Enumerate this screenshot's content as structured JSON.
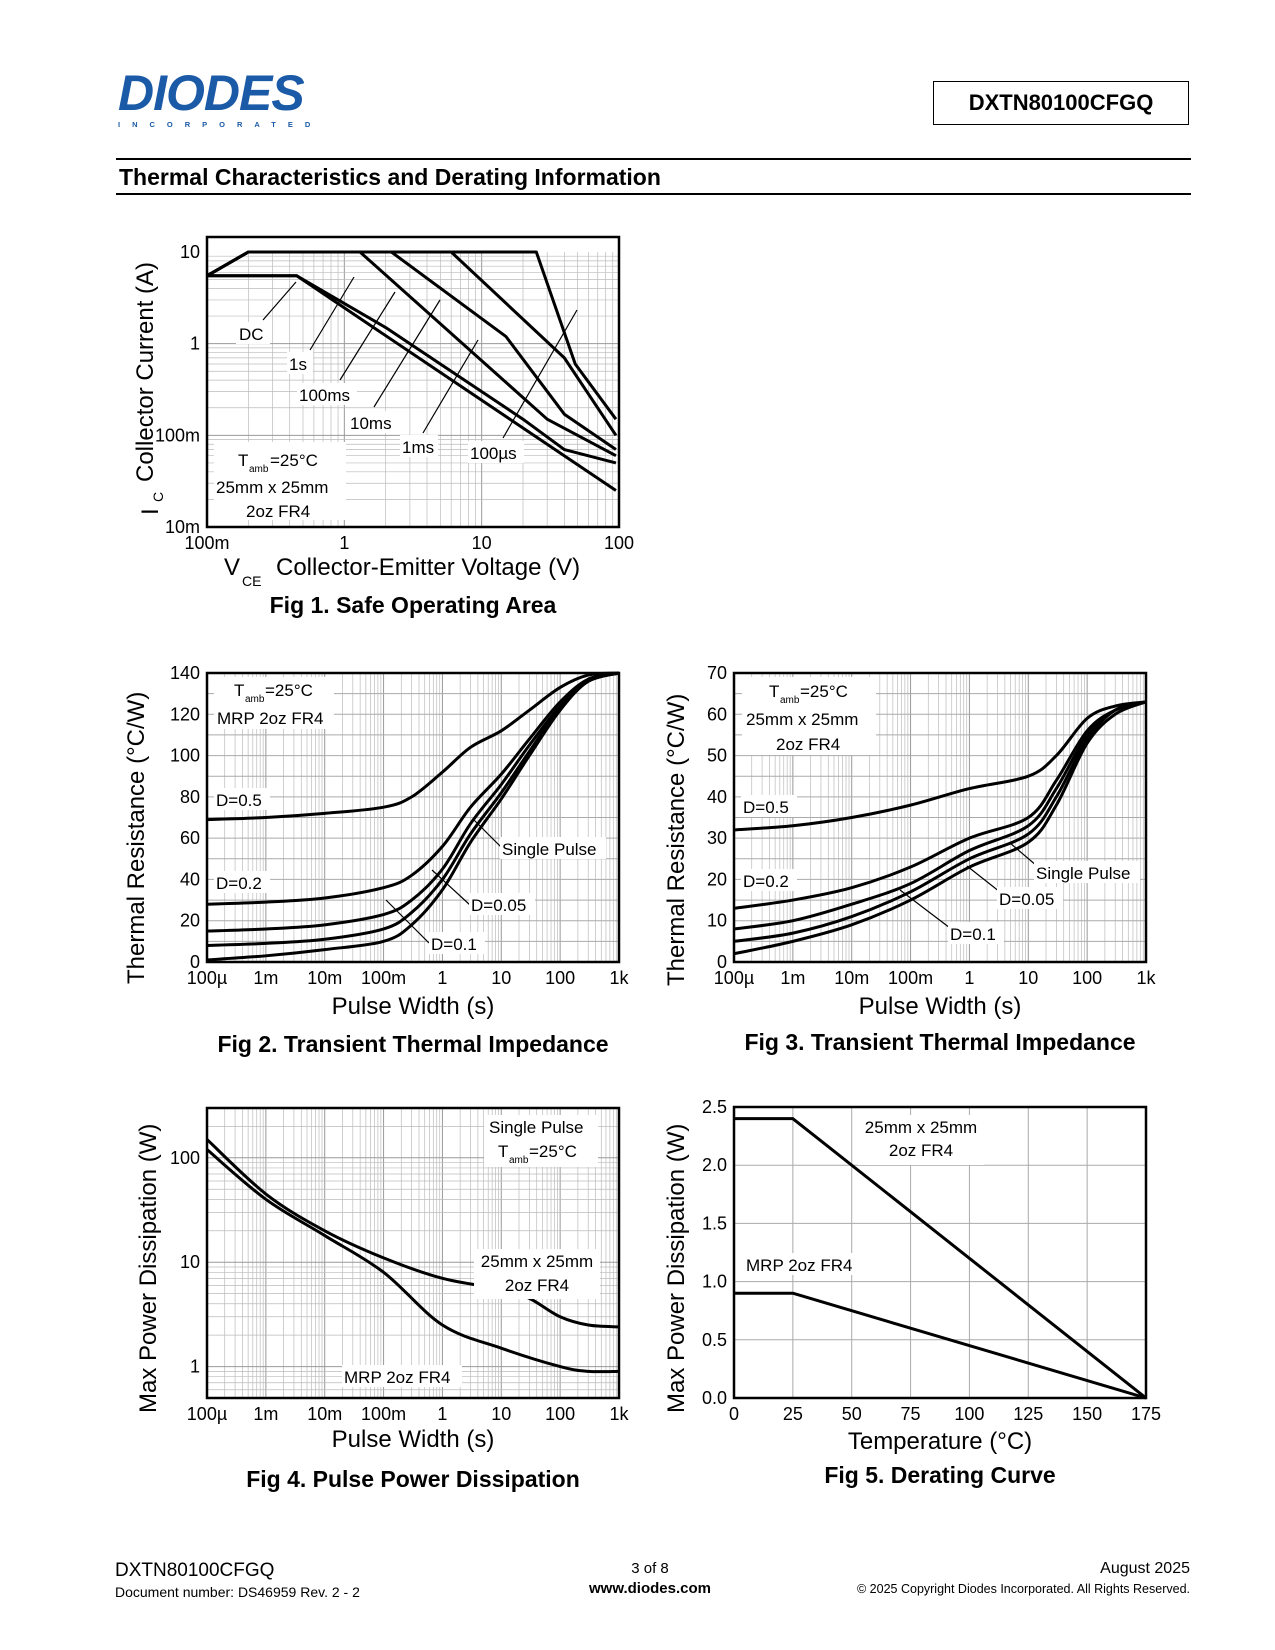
{
  "header": {
    "logo_text": "DIODES",
    "logo_sub": "INCORPORATED",
    "part_number": "DXTN80100CFGQ",
    "section_title": "Thermal Characteristics and Derating Information"
  },
  "figures": [
    {
      "caption": "Fig 1. Safe Operating Area",
      "ylabel_main": "I",
      "ylabel_sub": "C",
      "ylabel_rest": "Collector Current (A)",
      "xlabel_main": "V",
      "xlabel_sub": "CE",
      "xlabel_rest": "Collector-Emitter Voltage (V)",
      "x_ticks": [
        "100m",
        "1",
        "10",
        "100"
      ],
      "y_ticks": [
        "10m",
        "100m",
        "1",
        "10"
      ],
      "curve_labels": [
        "DC",
        "1s",
        "100ms",
        "10ms",
        "1ms",
        "100µs"
      ],
      "note_t": "T",
      "note_amb": "amb",
      "note_temp": "=25°C",
      "note_line2": "25mm x 25mm",
      "note_line3": "2oz FR4"
    },
    {
      "caption": "Fig 2. Transient Thermal Impedance",
      "ylabel": "Thermal Resistance (°C/W)",
      "xlabel": "Pulse Width (s)",
      "x_ticks": [
        "100µ",
        "1m",
        "10m",
        "100m",
        "1",
        "10",
        "100",
        "1k"
      ],
      "y_ticks": [
        "0",
        "20",
        "40",
        "60",
        "80",
        "100",
        "120",
        "140"
      ],
      "curve_labels": [
        "D=0.5",
        "D=0.2",
        "Single Pulse",
        "D=0.05",
        "D=0.1"
      ],
      "note_t": "T",
      "note_amb": "amb",
      "note_temp": "=25°C",
      "note_line2": "MRP 2oz FR4"
    },
    {
      "caption": "Fig 3. Transient Thermal Impedance",
      "ylabel": "Thermal Resistance (°C/W)",
      "xlabel": "Pulse Width (s)",
      "x_ticks": [
        "100µ",
        "1m",
        "10m",
        "100m",
        "1",
        "10",
        "100",
        "1k"
      ],
      "y_ticks": [
        "0",
        "10",
        "20",
        "30",
        "40",
        "50",
        "60",
        "70"
      ],
      "curve_labels": [
        "D=0.5",
        "D=0.2",
        "Single Pulse",
        "D=0.05",
        "D=0.1"
      ],
      "note_t": "T",
      "note_amb": "amb",
      "note_temp": "=25°C",
      "note_line2": "25mm x 25mm",
      "note_line3": "2oz FR4"
    },
    {
      "caption": "Fig 4. Pulse Power Dissipation",
      "ylabel": "Max Power Dissipation (W)",
      "xlabel": "Pulse Width (s)",
      "x_ticks": [
        "100µ",
        "1m",
        "10m",
        "100m",
        "1",
        "10",
        "100",
        "1k"
      ],
      "y_ticks": [
        "1",
        "10",
        "100"
      ],
      "curve_labels": [
        "25mm x 25mm",
        "2oz FR4",
        "MRP 2oz FR4"
      ],
      "note_line1": "Single Pulse",
      "note_t": "T",
      "note_amb": "amb",
      "note_temp": "=25°C"
    },
    {
      "caption": "Fig 5. Derating Curve",
      "ylabel": "Max Power Dissipation (W)",
      "xlabel": "Temperature (°C)",
      "x_ticks": [
        "0",
        "25",
        "50",
        "75",
        "100",
        "125",
        "150",
        "175"
      ],
      "y_ticks": [
        "0.0",
        "0.5",
        "1.0",
        "1.5",
        "2.0",
        "2.5"
      ],
      "curve_labels": [
        "25mm x 25mm",
        "2oz FR4",
        "MRP 2oz FR4"
      ]
    }
  ],
  "chart_data": [
    {
      "type": "line",
      "x_scale": "log",
      "y_scale": "log",
      "xlim": [
        0.1,
        100
      ],
      "ylim": [
        0.01,
        10
      ],
      "series": [
        {
          "name": "DC",
          "x": [
            0.1,
            0.45,
            95
          ],
          "y": [
            5.5,
            5.5,
            0.025
          ]
        },
        {
          "name": "1s",
          "x": [
            0.1,
            0.45,
            2,
            20,
            40,
            95
          ],
          "y": [
            5.5,
            5.5,
            1.5,
            0.15,
            0.07,
            0.05
          ]
        },
        {
          "name": "100ms",
          "x": [
            0.1,
            0.2,
            1.3,
            30,
            95
          ],
          "y": [
            5.5,
            10,
            10,
            0.15,
            0.06
          ]
        },
        {
          "name": "10ms",
          "x": [
            0.1,
            0.2,
            2.2,
            15,
            40,
            95
          ],
          "y": [
            5.5,
            10,
            10,
            1.2,
            0.17,
            0.07
          ]
        },
        {
          "name": "1ms",
          "x": [
            0.1,
            0.2,
            6,
            40,
            95
          ],
          "y": [
            5.5,
            10,
            10,
            0.7,
            0.1
          ]
        },
        {
          "name": "100µs",
          "x": [
            0.1,
            0.2,
            25,
            48,
            95
          ],
          "y": [
            5.5,
            10,
            10,
            0.6,
            0.15
          ]
        }
      ]
    },
    {
      "type": "line",
      "x_scale": "log",
      "xlim": [
        0.0001,
        1000
      ],
      "ylim": [
        0,
        140
      ],
      "series": [
        {
          "name": "D=0.5",
          "x": [
            0.0001,
            0.001,
            0.01,
            0.1,
            0.3,
            1,
            3,
            10,
            30,
            100,
            300,
            1000
          ],
          "y": [
            69,
            70,
            72,
            75,
            80,
            92,
            104,
            112,
            122,
            133,
            139,
            140
          ]
        },
        {
          "name": "D=0.2",
          "x": [
            0.0001,
            0.001,
            0.01,
            0.1,
            0.3,
            1,
            3,
            10,
            30,
            100,
            300,
            1000
          ],
          "y": [
            28,
            29,
            31,
            36,
            42,
            56,
            75,
            91,
            108,
            126,
            137,
            140
          ]
        },
        {
          "name": "D=0.1",
          "x": [
            0.0001,
            0.001,
            0.01,
            0.1,
            0.3,
            1,
            3,
            10,
            30,
            100,
            300,
            1000
          ],
          "y": [
            15,
            16,
            18,
            23,
            30,
            45,
            67,
            86,
            105,
            124,
            136,
            140
          ]
        },
        {
          "name": "D=0.05",
          "x": [
            0.0001,
            0.001,
            0.01,
            0.1,
            0.3,
            1,
            3,
            10,
            30,
            100,
            300,
            1000
          ],
          "y": [
            8,
            9,
            11,
            16,
            24,
            40,
            62,
            82,
            102,
            123,
            136,
            140
          ]
        },
        {
          "name": "Single Pulse",
          "x": [
            0.0001,
            0.001,
            0.01,
            0.1,
            0.3,
            1,
            3,
            10,
            30,
            100,
            300,
            1000
          ],
          "y": [
            1,
            3,
            6,
            10,
            18,
            35,
            58,
            79,
            100,
            122,
            136,
            140
          ]
        }
      ]
    },
    {
      "type": "line",
      "x_scale": "log",
      "xlim": [
        0.0001,
        1000
      ],
      "ylim": [
        0,
        70
      ],
      "series": [
        {
          "name": "D=0.5",
          "x": [
            0.0001,
            0.001,
            0.01,
            0.1,
            1,
            10,
            30,
            100,
            300,
            1000
          ],
          "y": [
            32,
            33,
            35,
            38,
            42,
            45,
            50,
            59,
            62,
            63
          ]
        },
        {
          "name": "D=0.2",
          "x": [
            0.0001,
            0.001,
            0.01,
            0.1,
            1,
            10,
            30,
            100,
            300,
            1000
          ],
          "y": [
            13,
            15,
            18,
            23,
            30,
            35,
            44,
            56,
            61,
            63
          ]
        },
        {
          "name": "D=0.1",
          "x": [
            0.0001,
            0.001,
            0.01,
            0.1,
            1,
            10,
            30,
            100,
            300,
            1000
          ],
          "y": [
            8,
            10,
            14,
            19,
            27,
            33,
            42,
            55,
            61,
            63
          ]
        },
        {
          "name": "D=0.05",
          "x": [
            0.0001,
            0.001,
            0.01,
            0.1,
            1,
            10,
            30,
            100,
            300,
            1000
          ],
          "y": [
            5,
            7,
            11,
            17,
            25,
            31,
            40,
            54,
            61,
            63
          ]
        },
        {
          "name": "Single Pulse",
          "x": [
            0.0001,
            0.001,
            0.01,
            0.1,
            1,
            10,
            30,
            100,
            300,
            1000
          ],
          "y": [
            2,
            5,
            9,
            15,
            23,
            29,
            38,
            53,
            60,
            63
          ]
        }
      ]
    },
    {
      "type": "line",
      "x_scale": "log",
      "y_scale": "log",
      "xlim": [
        0.0001,
        1000
      ],
      "ylim": [
        0.5,
        300
      ],
      "series": [
        {
          "name": "25mm x 25mm 2oz FR4",
          "x": [
            0.0001,
            0.001,
            0.01,
            0.1,
            1,
            10,
            30,
            100,
            300,
            1000
          ],
          "y": [
            150,
            45,
            20,
            11,
            7,
            5.5,
            4.5,
            3,
            2.5,
            2.4
          ]
        },
        {
          "name": "MRP 2oz FR4",
          "x": [
            0.0001,
            0.001,
            0.01,
            0.1,
            1,
            10,
            100,
            300,
            1000
          ],
          "y": [
            120,
            40,
            18,
            8,
            2.5,
            1.5,
            1.0,
            0.9,
            0.9
          ]
        }
      ]
    },
    {
      "type": "line",
      "xlim": [
        0,
        175
      ],
      "ylim": [
        0,
        2.5
      ],
      "series": [
        {
          "name": "25mm x 25mm 2oz FR4",
          "x": [
            0,
            25,
            175
          ],
          "y": [
            2.4,
            2.4,
            0
          ]
        },
        {
          "name": "MRP 2oz FR4",
          "x": [
            0,
            25,
            175
          ],
          "y": [
            0.9,
            0.9,
            0
          ]
        }
      ]
    }
  ],
  "footer": {
    "part_number": "DXTN80100CFGQ",
    "doc_number": "Document number: DS46959 Rev. 2 - 2",
    "page": "3 of 8",
    "website": "www.diodes.com",
    "date": "August 2025",
    "copyright": "© 2025 Copyright Diodes Incorporated. All Rights Reserved."
  }
}
